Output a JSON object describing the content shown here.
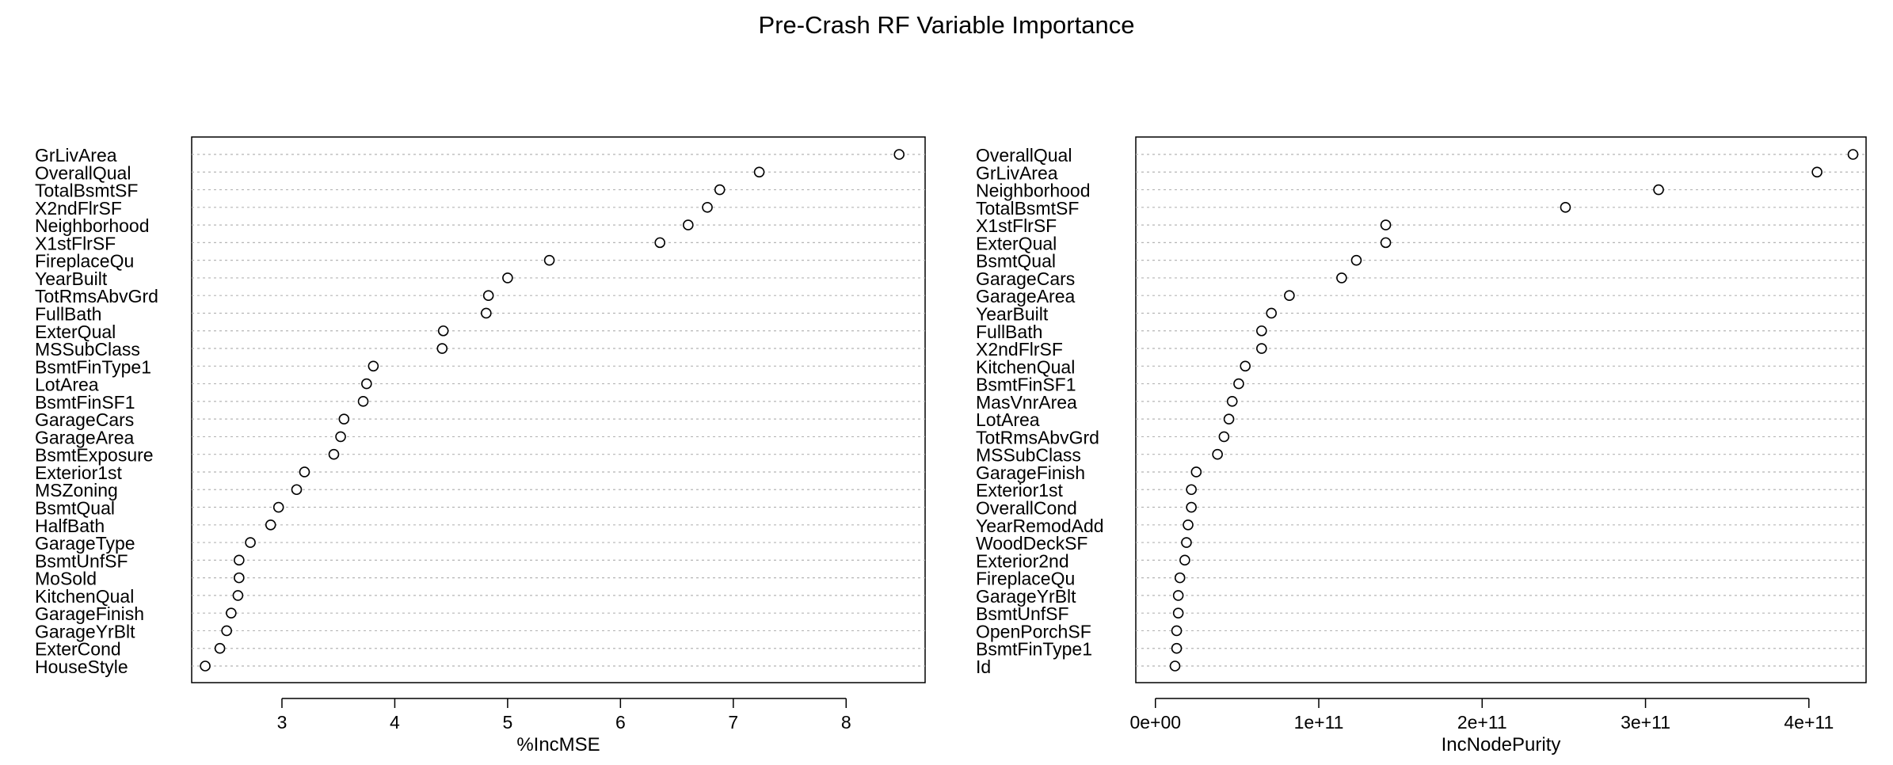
{
  "title": "Pre-Crash RF Variable Importance",
  "chart_data": [
    {
      "type": "scatter",
      "xlabel": "%IncMSE",
      "xlim": [
        2.2,
        8.7
      ],
      "xticks": [
        3,
        4,
        5,
        6,
        7,
        8
      ],
      "xtick_labels": [
        "3",
        "4",
        "5",
        "6",
        "7",
        "8"
      ],
      "grid": "dotted horizontal lines per variable",
      "labels": [
        "GrLivArea",
        "OverallQual",
        "TotalBsmtSF",
        "X2ndFlrSF",
        "Neighborhood",
        "X1stFlrSF",
        "FireplaceQu",
        "YearBuilt",
        "TotRmsAbvGrd",
        "FullBath",
        "ExterQual",
        "MSSubClass",
        "BsmtFinType1",
        "LotArea",
        "BsmtFinSF1",
        "GarageCars",
        "GarageArea",
        "BsmtExposure",
        "Exterior1st",
        "MSZoning",
        "BsmtQual",
        "HalfBath",
        "GarageType",
        "BsmtUnfSF",
        "MoSold",
        "KitchenQual",
        "GarageFinish",
        "GarageYrBlt",
        "ExterCond",
        "HouseStyle"
      ],
      "values": [
        8.47,
        7.23,
        6.88,
        6.77,
        6.6,
        6.35,
        5.37,
        5.0,
        4.83,
        4.81,
        4.43,
        4.42,
        3.81,
        3.75,
        3.72,
        3.55,
        3.52,
        3.46,
        3.2,
        3.13,
        2.97,
        2.9,
        2.72,
        2.62,
        2.62,
        2.61,
        2.55,
        2.51,
        2.45,
        2.32
      ]
    },
    {
      "type": "scatter",
      "xlabel": "IncNodePurity",
      "xlim": [
        -12000000000.0,
        435000000000.0
      ],
      "xticks": [
        0,
        100000000000.0,
        200000000000.0,
        300000000000.0,
        400000000000.0
      ],
      "xtick_labels": [
        "0e+00",
        "1e+11",
        "2e+11",
        "3e+11",
        "4e+11"
      ],
      "grid": "dotted horizontal lines per variable",
      "labels": [
        "OverallQual",
        "GrLivArea",
        "Neighborhood",
        "TotalBsmtSF",
        "X1stFlrSF",
        "ExterQual",
        "BsmtQual",
        "GarageCars",
        "GarageArea",
        "YearBuilt",
        "FullBath",
        "X2ndFlrSF",
        "KitchenQual",
        "BsmtFinSF1",
        "MasVnrArea",
        "LotArea",
        "TotRmsAbvGrd",
        "MSSubClass",
        "GarageFinish",
        "Exterior1st",
        "OverallCond",
        "YearRemodAdd",
        "WoodDeckSF",
        "Exterior2nd",
        "FireplaceQu",
        "GarageYrBlt",
        "BsmtUnfSF",
        "OpenPorchSF",
        "BsmtFinType1",
        "Id"
      ],
      "values": [
        427000000000.0,
        405000000000.0,
        308000000000.0,
        251000000000.0,
        141000000000.0,
        141000000000.0,
        123000000000.0,
        114000000000.0,
        82000000000.0,
        71000000000.0,
        65000000000.0,
        65000000000.0,
        55000000000.0,
        51000000000.0,
        47000000000.0,
        45000000000.0,
        42000000000.0,
        38000000000.0,
        25000000000.0,
        22000000000.0,
        22000000000.0,
        20000000000.0,
        19000000000.0,
        18000000000.0,
        15000000000.0,
        14000000000.0,
        14000000000.0,
        13000000000.0,
        13000000000.0,
        12000000000.0
      ]
    }
  ]
}
